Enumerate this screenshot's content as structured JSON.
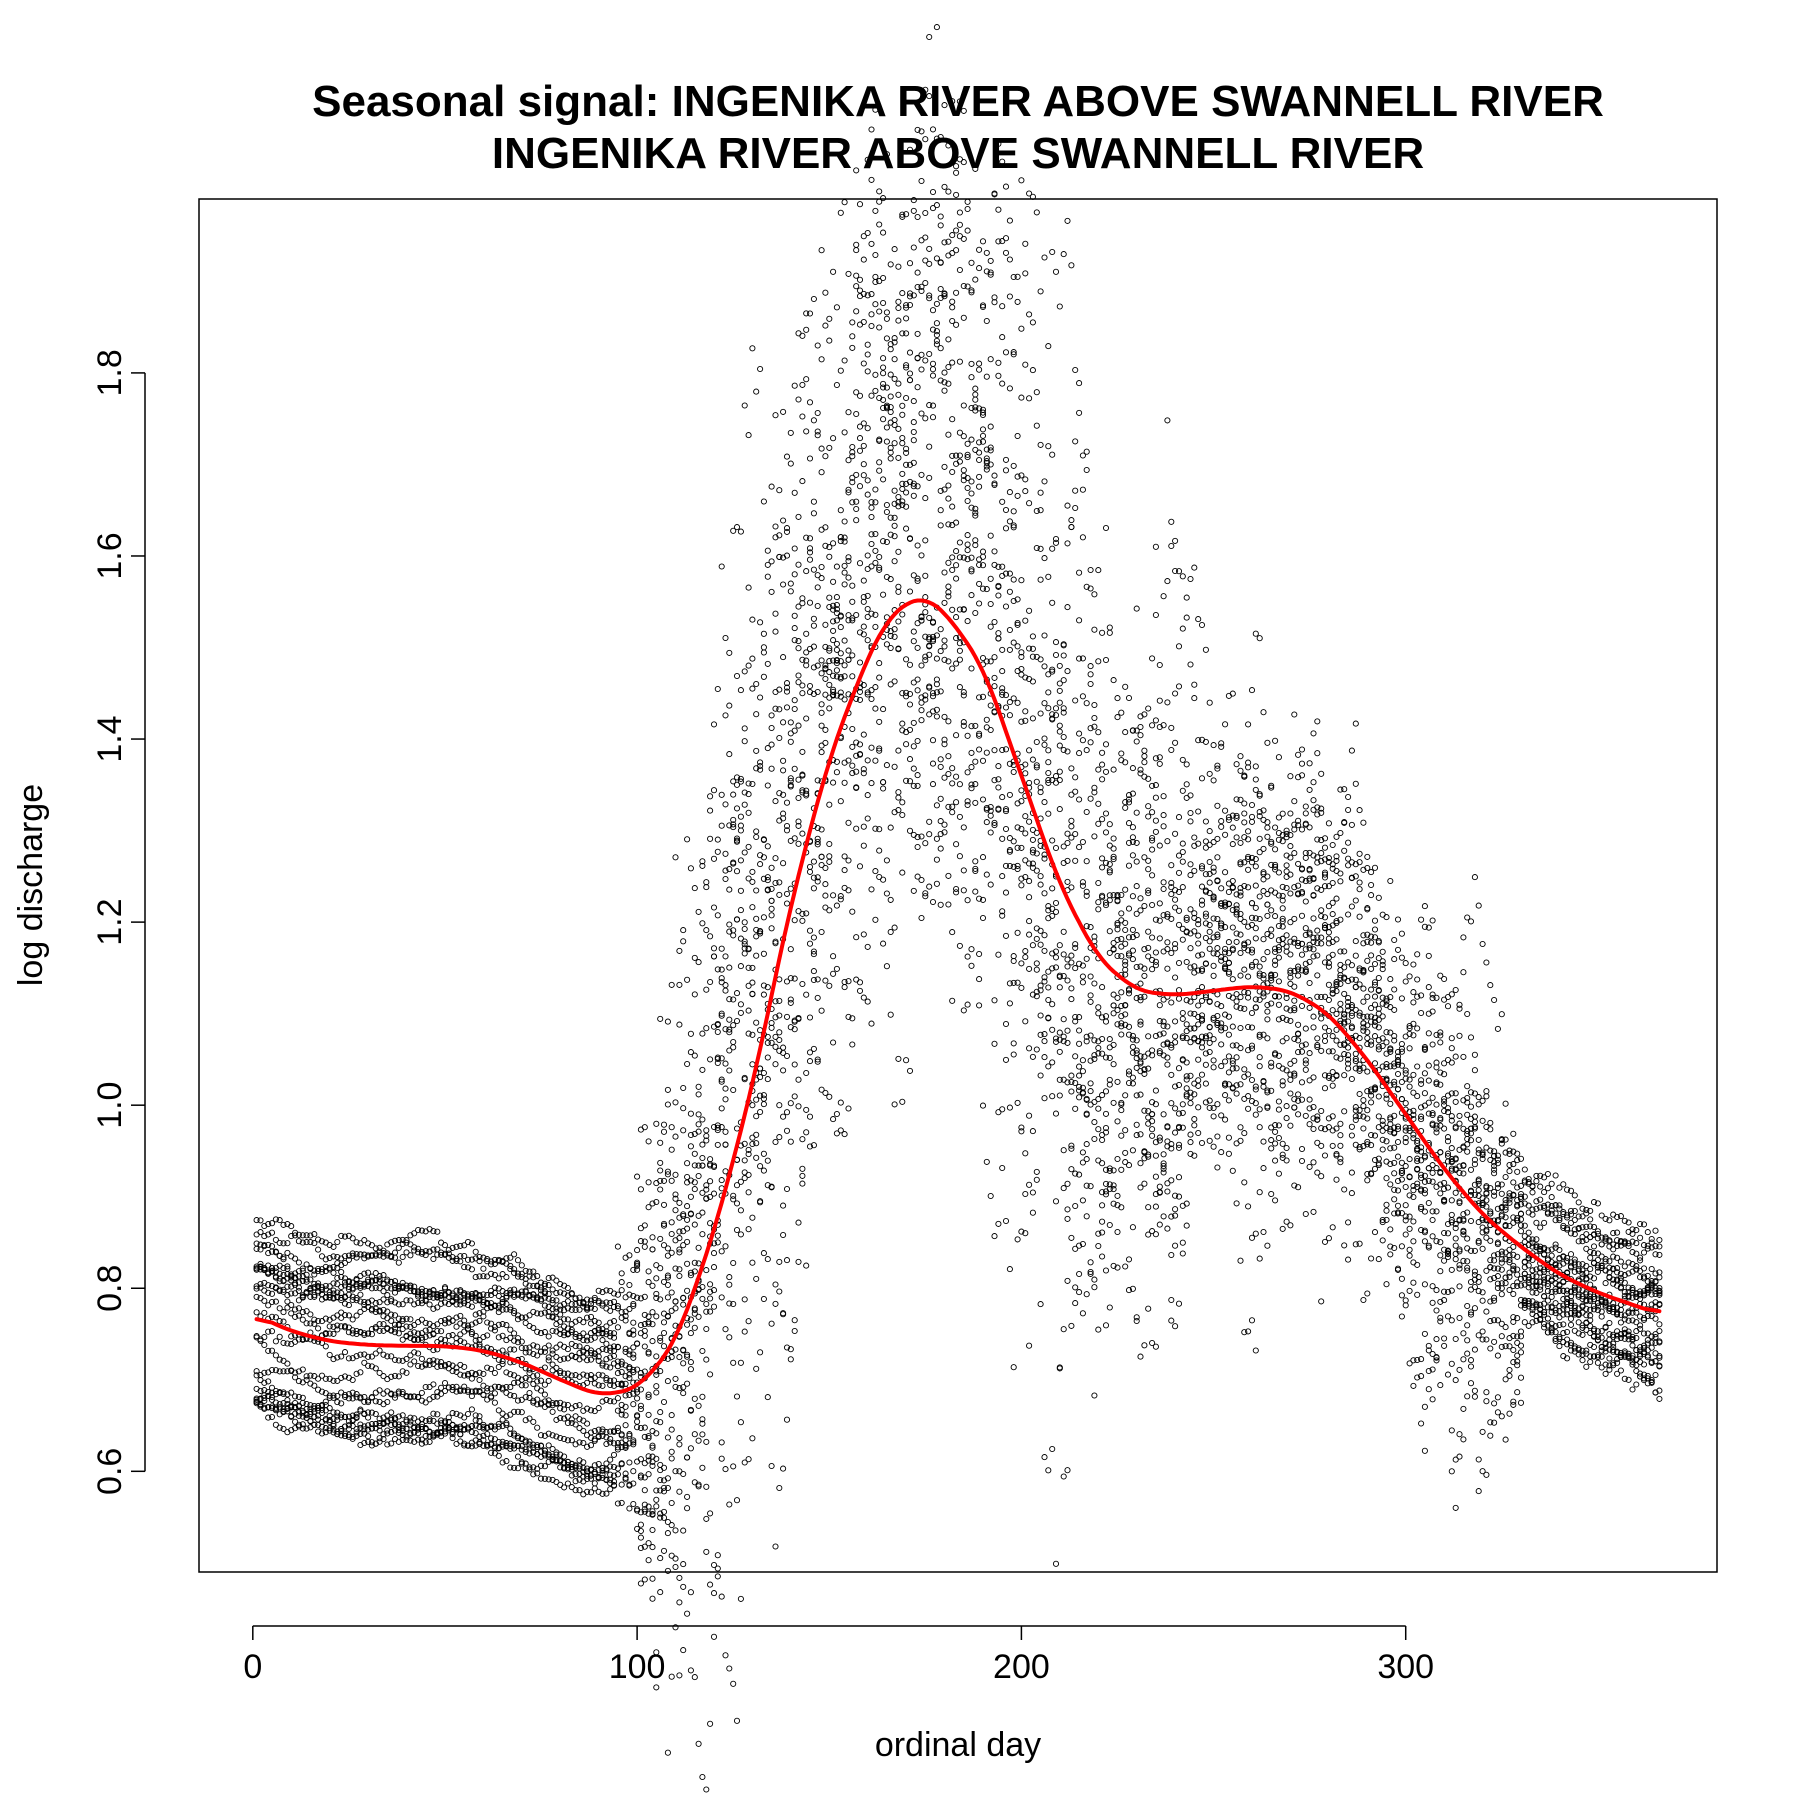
{
  "chart_data": {
    "type": "scatter",
    "title": "Seasonal signal: INGENIKA RIVER ABOVE SWANNELL RIVER",
    "subtitle": "INGENIKA RIVER ABOVE SWANNELL RIVER",
    "xlabel": "ordinal day",
    "ylabel": "log discharge",
    "xlim": [
      -14,
      381
    ],
    "ylim": [
      0.49,
      1.99
    ],
    "x_ticks": [
      0,
      100,
      200,
      300
    ],
    "y_ticks": [
      0.6,
      0.8,
      1.0,
      1.2,
      1.4,
      1.6,
      1.8
    ],
    "grid": false,
    "series": [
      {
        "role": "points",
        "color": "#000000",
        "marker": "open-circle",
        "day_range": [
          1,
          366
        ],
        "notable_points": [
          {
            "x": 157,
            "y": 1.94
          },
          {
            "x": 158,
            "y": 1.89
          },
          {
            "x": 156,
            "y": 1.84
          },
          {
            "x": 177,
            "y": 1.81
          },
          {
            "x": 205,
            "y": 1.65
          },
          {
            "x": 235,
            "y": 1.61
          },
          {
            "x": 312,
            "y": 0.6
          },
          {
            "x": 313,
            "y": 0.56
          },
          {
            "x": 111,
            "y": 0.6
          }
        ]
      },
      {
        "role": "smoothed",
        "color": "#ff0000",
        "x": [
          1,
          10,
          20,
          30,
          40,
          50,
          60,
          70,
          80,
          90,
          100,
          110,
          120,
          130,
          140,
          150,
          160,
          165,
          170,
          175,
          180,
          190,
          200,
          210,
          220,
          230,
          240,
          250,
          260,
          270,
          280,
          290,
          300,
          310,
          320,
          330,
          340,
          350,
          366
        ],
        "y": [
          0.77,
          0.753,
          0.742,
          0.738,
          0.737,
          0.737,
          0.732,
          0.719,
          0.7,
          0.683,
          0.69,
          0.74,
          0.86,
          1.02,
          1.22,
          1.38,
          1.49,
          1.53,
          1.55,
          1.555,
          1.54,
          1.48,
          1.36,
          1.24,
          1.16,
          1.125,
          1.12,
          1.125,
          1.13,
          1.125,
          1.1,
          1.05,
          0.99,
          0.93,
          0.88,
          0.845,
          0.815,
          0.795,
          0.772
        ]
      }
    ]
  }
}
